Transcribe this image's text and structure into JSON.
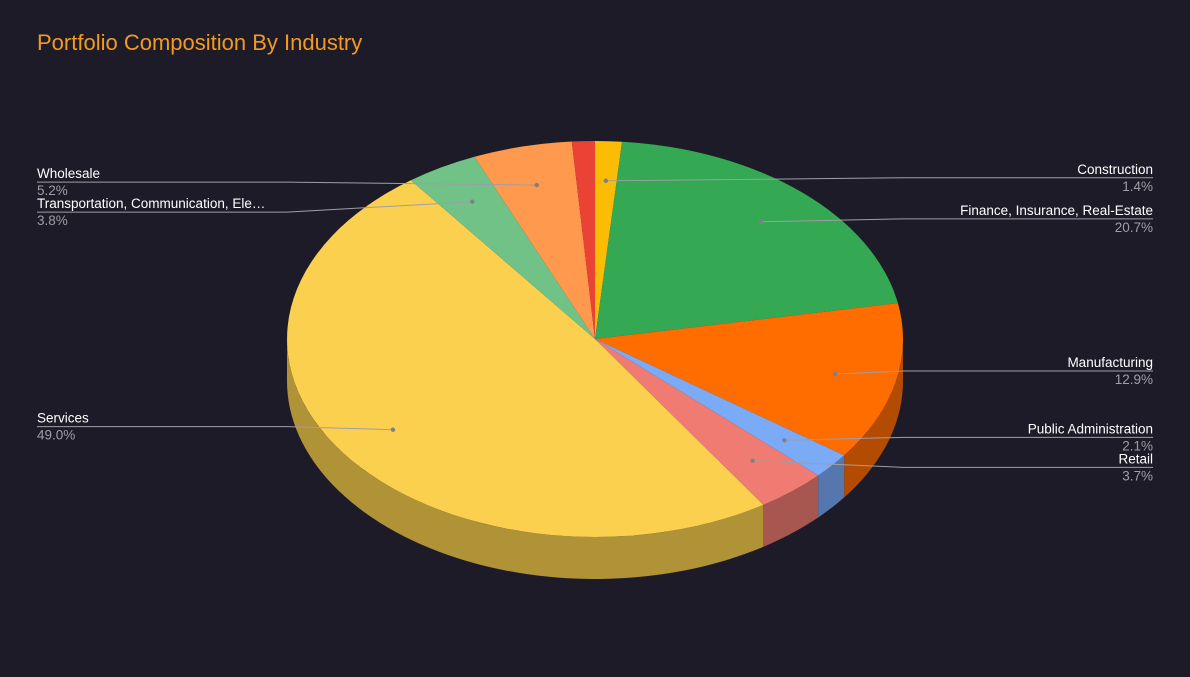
{
  "chart_data": {
    "type": "pie",
    "title": "Portfolio Composition By Industry",
    "slices": [
      {
        "label": "Construction",
        "display_label": "Construction",
        "value": 1.4,
        "pct_label": "1.4%",
        "color": "#fbbc04",
        "side": "right"
      },
      {
        "label": "Finance, Insurance, Real-Estate",
        "display_label": "Finance, Insurance, Real-Estate",
        "value": 20.7,
        "pct_label": "20.7%",
        "color": "#34a853",
        "side": "right"
      },
      {
        "label": "Manufacturing",
        "display_label": "Manufacturing",
        "value": 12.9,
        "pct_label": "12.9%",
        "color": "#ff6d01",
        "side": "right"
      },
      {
        "label": "Public Administration",
        "display_label": "Public Administration",
        "value": 2.1,
        "pct_label": "2.1%",
        "color": "#7baaf7",
        "side": "right"
      },
      {
        "label": "Retail",
        "display_label": "Retail",
        "value": 3.7,
        "pct_label": "3.7%",
        "color": "#f07b72",
        "side": "right"
      },
      {
        "label": "Services",
        "display_label": "Services",
        "value": 49.0,
        "pct_label": "49.0%",
        "color": "#fcd04f",
        "side": "left"
      },
      {
        "label": "Transportation, Communication, Ele…",
        "display_label": "Transportation, Communication, Ele…",
        "value": 3.8,
        "pct_label": "3.8%",
        "color": "#71c287",
        "side": "left"
      },
      {
        "label": "Wholesale",
        "display_label": "Wholesale",
        "value": 5.2,
        "pct_label": "5.2%",
        "color": "#ff994d",
        "side": "left"
      },
      {
        "label": "",
        "display_label": "",
        "value": 1.2,
        "pct_label": "",
        "color": "#ea4335",
        "side": "none"
      }
    ],
    "start_angle_deg": 0,
    "three_d": true
  },
  "colors": {
    "background": "#1e1b29",
    "title": "#f29a1f",
    "label": "#ffffff",
    "pct": "#9e9ea6",
    "leader": "#9e9ea6"
  }
}
